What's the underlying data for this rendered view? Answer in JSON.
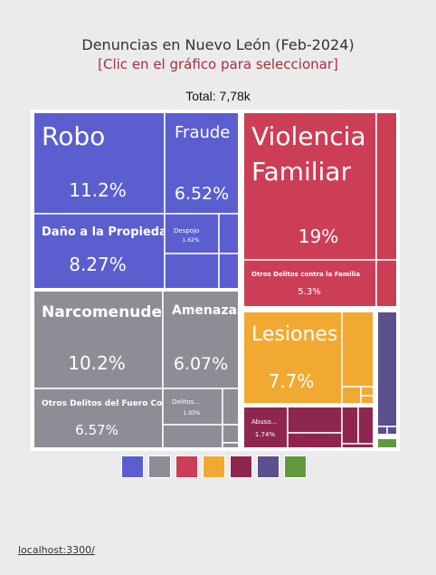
{
  "header": {
    "title": "Denuncias en Nuevo León (Feb-2024)",
    "subtitle": "[Clic en el gráfico para seleccionar]",
    "total": "Total: 7,78k"
  },
  "footer": {
    "url": "localhost:3300/"
  },
  "colors": {
    "blue": "#5b5ecf",
    "gray": "#8e8d95",
    "red": "#cc3e55",
    "orange": "#f2a931",
    "maroon": "#8e2650",
    "purple": "#5b4f8e",
    "green": "#62993f"
  },
  "chart_data": {
    "type": "treemap",
    "title": "Denuncias en Nuevo León (Feb-2024)",
    "unit": "%",
    "groups": [
      {
        "color": "blue",
        "items": [
          {
            "name": "Robo",
            "value": 11.2,
            "pct_label": "11.2%"
          },
          {
            "name": "Fraude",
            "value": 6.52,
            "pct_label": "6.52%"
          },
          {
            "name": "Daño a la Propiedad",
            "value": 8.27,
            "pct_label": "8.27%"
          },
          {
            "name": "Despojo",
            "value": 1.62,
            "pct_label": "1.62%"
          }
        ]
      },
      {
        "color": "gray",
        "items": [
          {
            "name": "Narcomenudeo",
            "value": 10.2,
            "pct_label": "10.2%"
          },
          {
            "name": "Amenazas",
            "value": 6.07,
            "pct_label": "6.07%"
          },
          {
            "name": "Otros Delitos del Fuero Común",
            "value": 6.57,
            "pct_label": "6.57%"
          },
          {
            "name": "Delitos...",
            "value": 1.93,
            "pct_label": "1.93%"
          }
        ]
      },
      {
        "color": "red",
        "items": [
          {
            "name": "Violencia Familiar",
            "value": 19,
            "pct_label": "19%"
          },
          {
            "name": "Otros Delitos contra la Familia",
            "value": 5.3,
            "pct_label": "5.3%"
          }
        ]
      },
      {
        "color": "orange",
        "items": [
          {
            "name": "Lesiones",
            "value": 7.7,
            "pct_label": "7.7%"
          }
        ]
      },
      {
        "color": "maroon",
        "items": [
          {
            "name": "Abuso...",
            "value": 1.74,
            "pct_label": "1.74%"
          }
        ]
      },
      {
        "color": "purple",
        "items": []
      },
      {
        "color": "green",
        "items": []
      }
    ],
    "legend": [
      "blue",
      "gray",
      "red",
      "orange",
      "maroon",
      "purple",
      "green"
    ]
  }
}
